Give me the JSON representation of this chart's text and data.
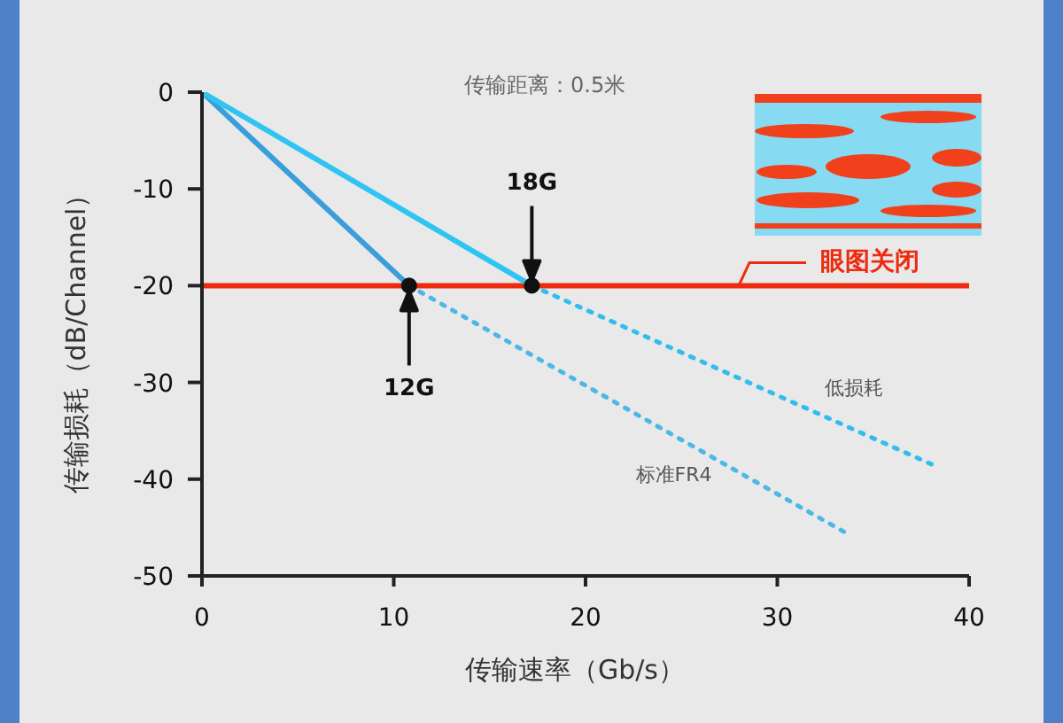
{
  "chart_data": {
    "type": "line",
    "xlabel": "传输速率（Gb/s）",
    "ylabel": "传输损耗（dB/Channel）",
    "annotations": [
      "传输距离：0.5米",
      {
        "text": "12G",
        "x": 10.8,
        "y": -20
      },
      {
        "text": "18G",
        "x": 17.2,
        "y": -20
      }
    ],
    "series": [
      {
        "color": "#3a9edb",
        "x": [
          0,
          10.8
        ],
        "values": [
          0,
          -20
        ],
        "line_style": "solid"
      },
      {
        "name": "标准FR4",
        "color": "#4bb8e6",
        "x": [
          10.8,
          33.8
        ],
        "values": [
          -20,
          -45.8
        ],
        "line_style": "dotted"
      },
      {
        "color": "#2ec5f3",
        "x": [
          0,
          17.2
        ],
        "values": [
          0,
          -20
        ],
        "line_style": "solid"
      },
      {
        "name": "低损耗",
        "color": "#33bdee",
        "x": [
          17.2,
          38.2
        ],
        "values": [
          -20,
          -38.6
        ],
        "line_style": "dotted"
      },
      {
        "type": "scatter",
        "color": "#111111",
        "x": [
          10.8,
          17.2
        ],
        "values": [
          -20,
          -20
        ],
        "marker": "circle"
      }
    ],
    "xlim": [
      0,
      40
    ],
    "xticks": [
      0,
      10,
      20,
      30,
      40
    ],
    "ylim": [
      -50,
      0
    ],
    "yticks": [
      0,
      -10,
      -20,
      -30,
      -40,
      -50
    ],
    "ref_lines": [
      {
        "axis": "y",
        "value": -20,
        "label": "眼图关闭",
        "color": "#ee2a0f"
      }
    ]
  }
}
